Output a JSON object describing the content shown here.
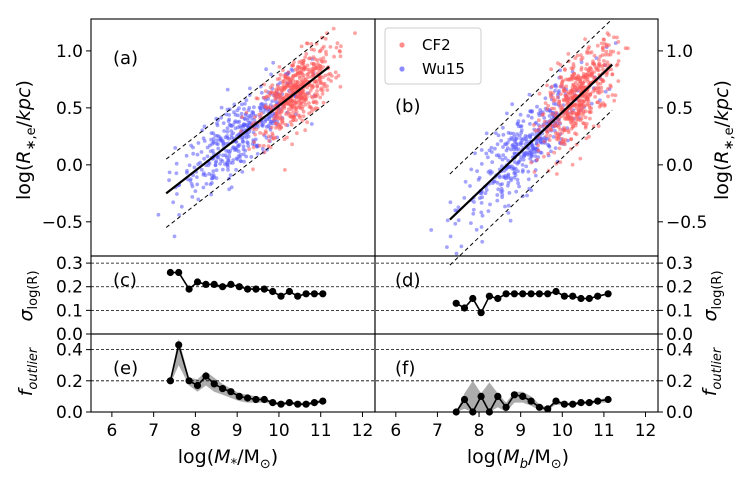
{
  "chart_data": {
    "type": "scatter",
    "figure": "size-mass relation and residual statistics",
    "legend": {
      "placement": "top-left of panel (b)",
      "entries": [
        {
          "name": "CF2",
          "color": "#ff5a5a"
        },
        {
          "name": "Wu15",
          "color": "#5a5aff"
        }
      ]
    },
    "x_ticks": [
      "6",
      "7",
      "8",
      "9",
      "10",
      "11",
      "12"
    ],
    "xlim": [
      5.5,
      12.3
    ],
    "columns": [
      {
        "xlabel": "log(M*/M☉)",
        "xlabel_main": "log(",
        "xlabel_sym": "M",
        "xlabel_sub": "*",
        "xlabel_tail": "/M",
        "xlabel_sun": "⊙",
        "xlabel_close": ")"
      },
      {
        "xlabel": "log(Mb/M☉)",
        "xlabel_main": "log(",
        "xlabel_sym": "M",
        "xlabel_sub": "b",
        "xlabel_tail": "/M",
        "xlabel_sun": "⊙",
        "xlabel_close": ")"
      }
    ],
    "top_panels": {
      "ylabel": "log(R*,e/kpc)",
      "ylim": [
        -0.8,
        1.28
      ],
      "y_ticks": [
        "1.0",
        "0.5",
        "0.0",
        "−0.5"
      ],
      "y_tick_values": [
        1.0,
        0.5,
        0.0,
        -0.5
      ],
      "labels": [
        "(a)",
        "(b)"
      ],
      "fits": [
        {
          "x": [
            7.3,
            11.2
          ],
          "y": [
            -0.25,
            0.86
          ],
          "scatter_offset": 0.3
        },
        {
          "x": [
            7.3,
            11.2
          ],
          "y": [
            -0.48,
            0.88
          ],
          "scatter_offset": 0.4
        }
      ]
    },
    "sigma_panels": {
      "ylabel": "σ log(R)",
      "ylim": [
        0.0,
        0.33
      ],
      "y_ticks": [
        "0.3",
        "0.2",
        "0.1",
        "0.0"
      ],
      "y_tick_values": [
        0.3,
        0.2,
        0.1,
        0.0
      ],
      "gridlines": [
        0.1,
        0.2,
        0.3
      ],
      "labels": [
        "(c)",
        "(d)"
      ],
      "series": [
        {
          "x": [
            7.4,
            7.6,
            7.85,
            8.05,
            8.25,
            8.45,
            8.65,
            8.85,
            9.05,
            9.25,
            9.45,
            9.65,
            9.85,
            10.05,
            10.25,
            10.45,
            10.65,
            10.85,
            11.05
          ],
          "y": [
            0.26,
            0.26,
            0.19,
            0.22,
            0.21,
            0.21,
            0.2,
            0.21,
            0.2,
            0.19,
            0.19,
            0.19,
            0.18,
            0.16,
            0.18,
            0.16,
            0.17,
            0.17,
            0.17
          ]
        },
        {
          "x": [
            7.45,
            7.65,
            7.85,
            8.05,
            8.25,
            8.45,
            8.65,
            8.85,
            9.05,
            9.25,
            9.45,
            9.65,
            9.85,
            10.05,
            10.25,
            10.45,
            10.65,
            10.85,
            11.1
          ],
          "y": [
            0.13,
            0.11,
            0.15,
            0.09,
            0.16,
            0.15,
            0.17,
            0.17,
            0.17,
            0.17,
            0.17,
            0.17,
            0.18,
            0.16,
            0.16,
            0.15,
            0.15,
            0.16,
            0.17
          ]
        }
      ]
    },
    "outlier_panels": {
      "ylabel": "f outlier",
      "ylim": [
        0.0,
        0.5
      ],
      "y_ticks": [
        "0.4",
        "0.2",
        "0.0"
      ],
      "y_tick_values": [
        0.4,
        0.2,
        0.0
      ],
      "gridlines": [
        0.2,
        0.4
      ],
      "labels": [
        "(e)",
        "(f)"
      ],
      "series": [
        {
          "x": [
            7.4,
            7.6,
            7.85,
            8.05,
            8.25,
            8.45,
            8.65,
            8.85,
            9.05,
            9.25,
            9.45,
            9.65,
            9.85,
            10.05,
            10.25,
            10.45,
            10.65,
            10.85,
            11.05
          ],
          "y": [
            0.2,
            0.43,
            0.2,
            0.17,
            0.23,
            0.18,
            0.15,
            0.13,
            0.1,
            0.09,
            0.08,
            0.08,
            0.06,
            0.05,
            0.06,
            0.05,
            0.05,
            0.06,
            0.07
          ],
          "band_lo": [
            0.18,
            0.3,
            0.17,
            0.13,
            0.17,
            0.13,
            0.11,
            0.09,
            0.07,
            0.06,
            0.06,
            0.06,
            0.05,
            0.04,
            0.05,
            0.04,
            0.04,
            0.05,
            0.06
          ],
          "band_hi": [
            0.22,
            0.47,
            0.22,
            0.21,
            0.26,
            0.22,
            0.18,
            0.15,
            0.12,
            0.11,
            0.1,
            0.09,
            0.07,
            0.06,
            0.07,
            0.06,
            0.06,
            0.07,
            0.08
          ]
        },
        {
          "x": [
            7.45,
            7.65,
            7.85,
            8.05,
            8.25,
            8.45,
            8.65,
            8.85,
            9.05,
            9.25,
            9.45,
            9.65,
            9.85,
            10.05,
            10.25,
            10.45,
            10.65,
            10.85,
            11.1
          ],
          "y": [
            0.0,
            0.08,
            0.0,
            0.1,
            0.0,
            0.1,
            0.03,
            0.11,
            0.1,
            0.07,
            0.03,
            0.02,
            0.07,
            0.05,
            0.05,
            0.06,
            0.06,
            0.07,
            0.08
          ],
          "band_lo": [
            0.0,
            0.02,
            0.0,
            0.0,
            0.0,
            0.03,
            0.0,
            0.06,
            0.06,
            0.04,
            0.01,
            0.01,
            0.05,
            0.04,
            0.04,
            0.05,
            0.05,
            0.06,
            0.06
          ],
          "band_hi": [
            0.0,
            0.12,
            0.2,
            0.12,
            0.19,
            0.12,
            0.06,
            0.13,
            0.13,
            0.1,
            0.05,
            0.03,
            0.08,
            0.06,
            0.06,
            0.07,
            0.07,
            0.08,
            0.09
          ]
        }
      ]
    },
    "scatter_model": {
      "CF2": {
        "x_mean": 10.4,
        "x_sd": 0.45,
        "n": 520
      },
      "Wu15": {
        "x_mean": 9.1,
        "x_sd": 0.75,
        "n": 420
      }
    }
  }
}
